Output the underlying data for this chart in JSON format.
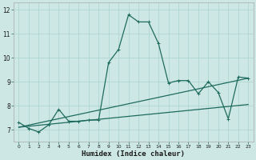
{
  "title": "",
  "xlabel": "Humidex (Indice chaleur)",
  "ylabel": "",
  "background_color": "#cde8e4",
  "grid_color": "#b0d5d0",
  "line_color": "#1e6b5e",
  "xlim": [
    -0.5,
    23.5
  ],
  "ylim": [
    6.5,
    12.3
  ],
  "yticks": [
    7,
    8,
    9,
    10,
    11,
    12
  ],
  "xticks": [
    0,
    1,
    2,
    3,
    4,
    5,
    6,
    7,
    8,
    9,
    10,
    11,
    12,
    13,
    14,
    15,
    16,
    17,
    18,
    19,
    20,
    21,
    22,
    23
  ],
  "series1_x": [
    0,
    1,
    2,
    3,
    4,
    5,
    6,
    7,
    8,
    9,
    10,
    11,
    12,
    13,
    14,
    15,
    16,
    17,
    18,
    19,
    20,
    21,
    22,
    23
  ],
  "series1_y": [
    7.3,
    7.05,
    6.9,
    7.2,
    7.85,
    7.35,
    7.35,
    7.4,
    7.4,
    9.8,
    10.35,
    11.8,
    11.5,
    11.5,
    10.6,
    8.95,
    9.05,
    9.05,
    8.5,
    9.0,
    8.55,
    7.45,
    9.2,
    9.15
  ],
  "series2_x": [
    0,
    23
  ],
  "series2_y": [
    7.1,
    8.05
  ],
  "series3_x": [
    0,
    23
  ],
  "series3_y": [
    7.1,
    9.15
  ],
  "marker_size": 3.5,
  "line_width": 0.9,
  "tick_fontsize": 5.0,
  "xlabel_fontsize": 6.5
}
